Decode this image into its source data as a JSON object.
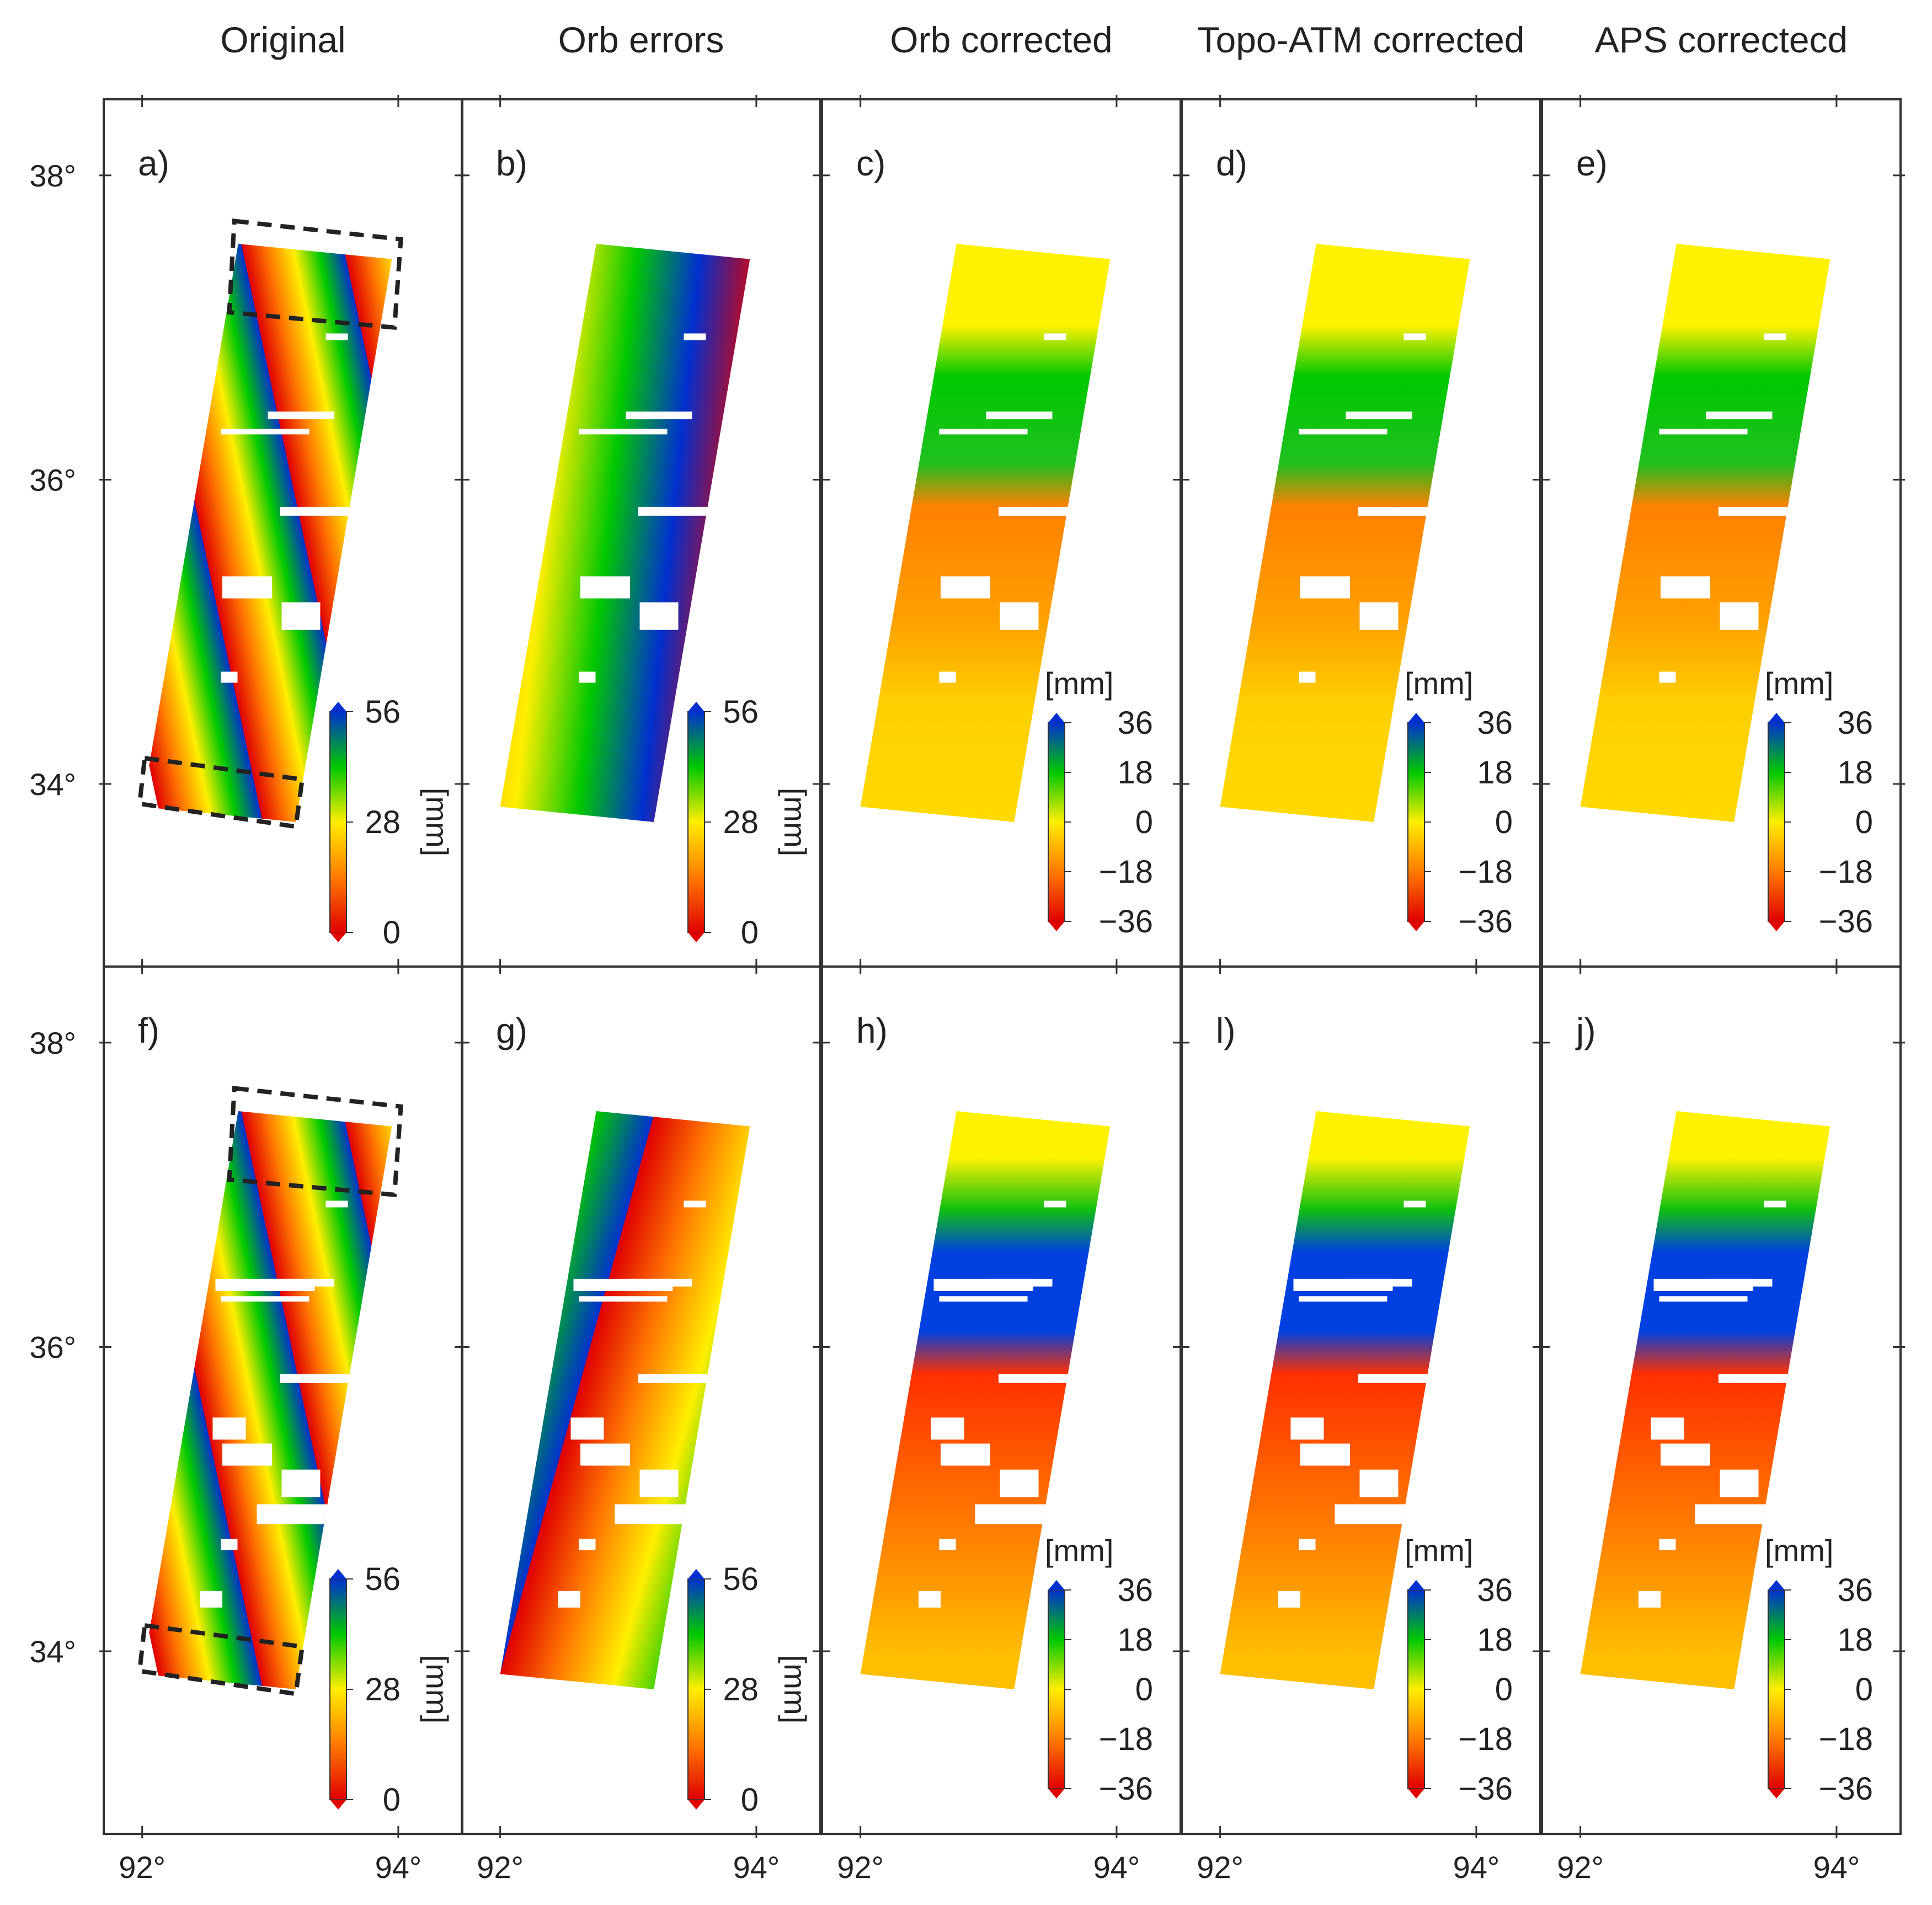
{
  "columns": [
    {
      "title": "Original",
      "type": "wrapped"
    },
    {
      "title": "Orb errors",
      "type": "orb"
    },
    {
      "title": "Orb corrected",
      "type": "corrected"
    },
    {
      "title": "Topo-ATM corrected",
      "type": "corrected"
    },
    {
      "title": "APS correctecd",
      "type": "corrected"
    }
  ],
  "rows": [
    {
      "panel_labels": [
        "a)",
        "b)",
        "c)",
        "d)",
        "e)"
      ]
    },
    {
      "panel_labels": [
        "f)",
        "g)",
        "h)",
        "l)",
        "j)"
      ]
    }
  ],
  "axes": {
    "lat_ticks": [
      "38°",
      "36°",
      "34°"
    ],
    "lat_values": [
      38,
      36,
      34
    ],
    "lon_ticks": [
      "92°",
      "94°"
    ],
    "lon_values": [
      92,
      94
    ],
    "lon_range": [
      91.7,
      94.5
    ],
    "lat_range": [
      32.8,
      38.5
    ]
  },
  "colorbars": {
    "wrapped": {
      "ticks": [
        "56",
        "28",
        "0"
      ],
      "values": [
        56,
        28,
        0
      ],
      "unit": "[mm]",
      "range": [
        0,
        56
      ]
    },
    "corrected": {
      "ticks": [
        "36",
        "18",
        "0",
        "−18",
        "−36"
      ],
      "values": [
        36,
        18,
        0,
        -18,
        -36
      ],
      "unit": "[mm]",
      "range": [
        -36,
        36
      ]
    }
  },
  "colors": {
    "ramp": [
      "#e00000",
      "#ff7a00",
      "#ffee00",
      "#00c800",
      "#0030d0"
    ],
    "frame": "#333333",
    "box": "#222222"
  }
}
